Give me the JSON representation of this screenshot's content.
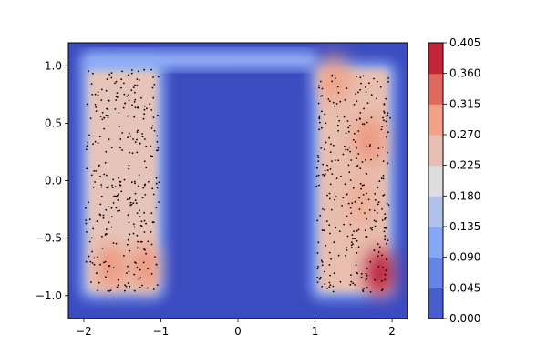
{
  "chart_data": {
    "type": "heatmap",
    "title": "",
    "xlabel": "",
    "ylabel": "",
    "xlim": [
      -2.2,
      2.2
    ],
    "ylim": [
      -1.2,
      1.2
    ],
    "x_ticks": [
      -2,
      -1,
      0,
      1,
      2
    ],
    "x_tick_labels": [
      "−2",
      "−1",
      "0",
      "1",
      "2"
    ],
    "y_ticks": [
      1.0,
      0.5,
      0.0,
      -0.5,
      -1.0
    ],
    "y_tick_labels": [
      "1.0",
      "0.5",
      "0.0",
      "−0.5",
      "−1.0"
    ],
    "colorbar": {
      "levels": [
        0.0,
        0.045,
        0.09,
        0.135,
        0.18,
        0.225,
        0.27,
        0.315,
        0.36,
        0.405
      ],
      "tick_labels": [
        "0.000",
        "0.045",
        "0.090",
        "0.135",
        "0.180",
        "0.225",
        "0.270",
        "0.315",
        "0.360",
        "0.405"
      ],
      "colormap": "coolwarm",
      "low_color": "#3b4cc0",
      "mid_color": "#dddddd",
      "high_color": "#b40426"
    },
    "density_regions": [
      {
        "name": "left-column",
        "x_range": [
          -2.0,
          -1.0
        ],
        "y_range": [
          -1.0,
          1.0
        ],
        "level": 0.24
      },
      {
        "name": "top-bar",
        "x_range": [
          -2.0,
          1.0
        ],
        "y_range": [
          1.0,
          1.1
        ],
        "level": 0.12
      },
      {
        "name": "right-column",
        "x_range": [
          1.0,
          2.0
        ],
        "y_range": [
          -1.0,
          1.0
        ],
        "level": 0.25
      },
      {
        "name": "interior-void",
        "x_range": [
          -0.95,
          0.95
        ],
        "y_range": [
          -1.2,
          0.99
        ],
        "level": 0.0
      }
    ],
    "hotspots": [
      {
        "x": -1.65,
        "y": -0.75,
        "value": 0.31
      },
      {
        "x": -1.2,
        "y": -0.75,
        "value": 0.31
      },
      {
        "x": 1.85,
        "y": -0.8,
        "value": 0.405
      },
      {
        "x": 1.7,
        "y": 0.35,
        "value": 0.31
      },
      {
        "x": 1.6,
        "y": -0.2,
        "value": 0.28
      },
      {
        "x": 1.25,
        "y": 0.9,
        "value": 0.3
      }
    ],
    "sample_points": {
      "marker_color": "#000000",
      "approx_count": 640,
      "regions": [
        "left-column",
        "right-column"
      ]
    }
  }
}
